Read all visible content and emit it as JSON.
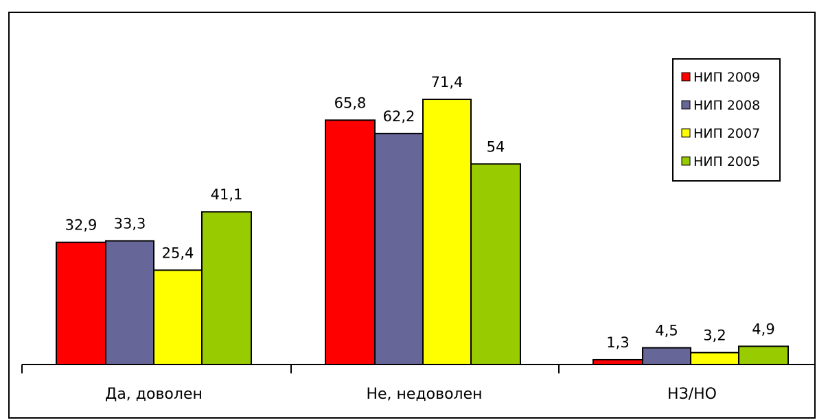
{
  "chart_data": {
    "type": "bar",
    "categories": [
      "Да, доволен",
      "Не, недоволен",
      "НЗ/НО"
    ],
    "series": [
      {
        "name": "НИП 2009",
        "color": "#ff0000",
        "values": [
          32.9,
          65.8,
          1.3
        ],
        "labels": [
          "32,9",
          "65,8",
          "1,3"
        ]
      },
      {
        "name": "НИП 2008",
        "color": "#666699",
        "values": [
          33.3,
          62.2,
          4.5
        ],
        "labels": [
          "33,3",
          "62,2",
          "4,5"
        ]
      },
      {
        "name": "НИП 2007",
        "color": "#ffff00",
        "values": [
          25.4,
          71.4,
          3.2
        ],
        "labels": [
          "25,4",
          "71,4",
          "3,2"
        ]
      },
      {
        "name": "НИП 2005",
        "color": "#99cc00",
        "values": [
          41.1,
          54,
          4.9
        ],
        "labels": [
          "41,1",
          "54",
          "4,9"
        ]
      }
    ],
    "ylim": [
      0,
      80
    ],
    "grid": false,
    "legend": "top-right",
    "title": "",
    "xlabel": "",
    "ylabel": ""
  }
}
